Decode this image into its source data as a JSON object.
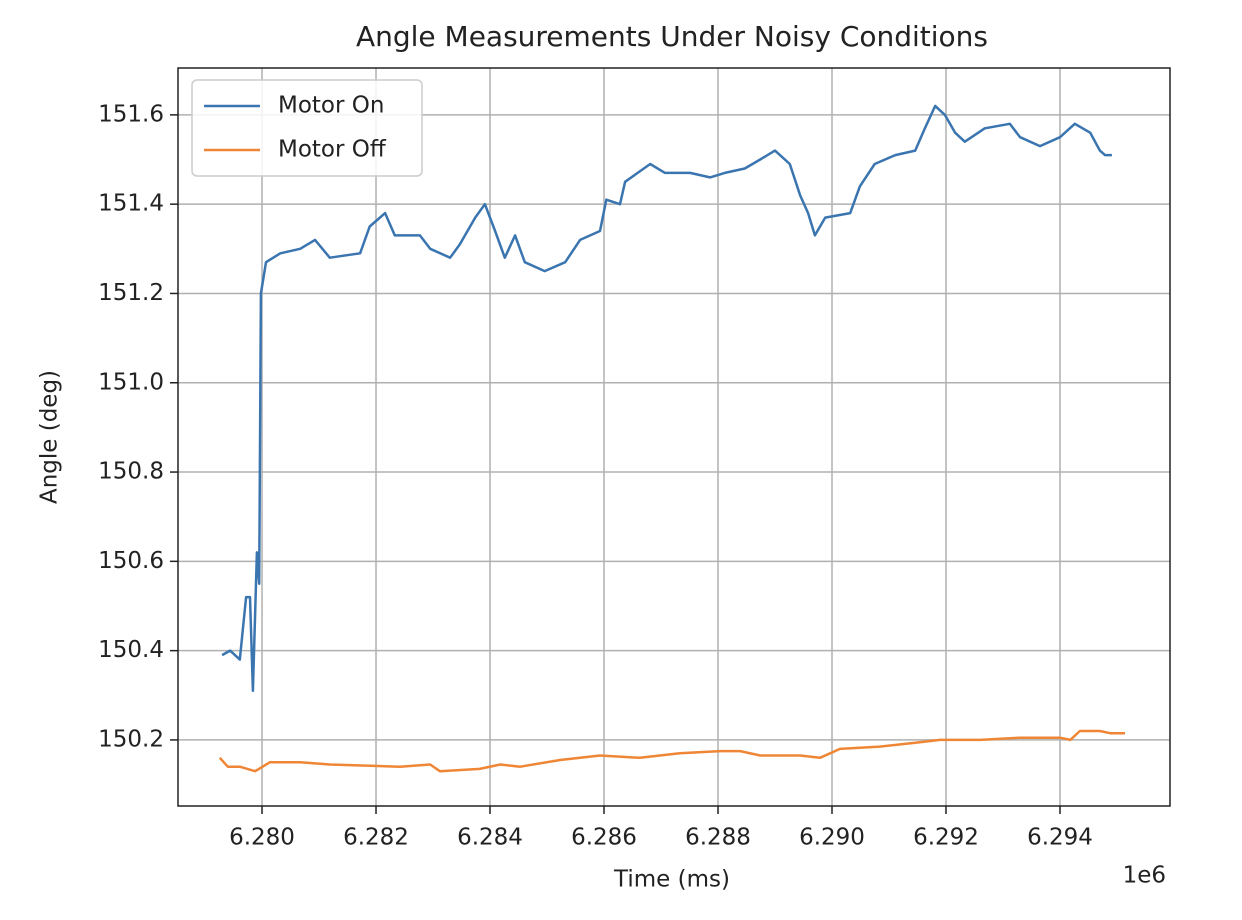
{
  "chart_data": {
    "type": "line",
    "title": "Angle Measurements Under Noisy Conditions",
    "xlabel": "Time (ms)",
    "ylabel": "Angle (deg)",
    "x_offset_label": "1e6",
    "xlim": [
      6.278526,
      6.29593
    ],
    "ylim": [
      150.052,
      151.705
    ],
    "xticks": [
      {
        "value": 6.28,
        "label": "6.280"
      },
      {
        "value": 6.282,
        "label": "6.282"
      },
      {
        "value": 6.284,
        "label": "6.284"
      },
      {
        "value": 6.286,
        "label": "6.286"
      },
      {
        "value": 6.288,
        "label": "6.288"
      },
      {
        "value": 6.29,
        "label": "6.290"
      },
      {
        "value": 6.292,
        "label": "6.292"
      },
      {
        "value": 6.294,
        "label": "6.294"
      }
    ],
    "yticks": [
      150.2,
      150.4,
      150.6,
      150.8,
      {
        "value": 151,
        "label": "151.0"
      },
      151.2,
      151.4,
      151.6
    ],
    "grid": true,
    "legend": "upper left",
    "series": [
      {
        "name": "Motor On",
        "color": "#3a75b0",
        "x": [
          6.2793,
          6.27944,
          6.27961,
          6.27972,
          6.27979,
          6.27984,
          6.27991,
          6.27995,
          6.27998,
          6.28007,
          6.28032,
          6.28067,
          6.28093,
          6.28119,
          6.28172,
          6.28189,
          6.28216,
          6.28233,
          6.28277,
          6.28295,
          6.2833,
          6.28347,
          6.28374,
          6.28391,
          6.28409,
          6.28426,
          6.28444,
          6.28461,
          6.28496,
          6.28532,
          6.28558,
          6.28593,
          6.28604,
          6.28628,
          6.28637,
          6.28681,
          6.28707,
          6.28751,
          6.28786,
          6.28812,
          6.28847,
          6.28874,
          6.289,
          6.28926,
          6.28944,
          6.28958,
          6.2897,
          6.28988,
          6.29032,
          6.29049,
          6.29075,
          6.29111,
          6.29146,
          6.29163,
          6.29181,
          6.29198,
          6.29216,
          6.29233,
          6.29268,
          6.29312,
          6.2933,
          6.29365,
          6.294,
          6.29426,
          6.29453,
          6.2947,
          6.29479,
          6.29491
        ],
        "values": [
          150.39,
          150.4,
          150.38,
          150.52,
          150.52,
          150.31,
          150.62,
          150.55,
          151.2,
          151.27,
          151.29,
          151.3,
          151.32,
          151.28,
          151.29,
          151.35,
          151.38,
          151.33,
          151.33,
          151.3,
          151.28,
          151.31,
          151.37,
          151.4,
          151.34,
          151.28,
          151.33,
          151.27,
          151.25,
          151.27,
          151.32,
          151.34,
          151.41,
          151.4,
          151.45,
          151.49,
          151.47,
          151.47,
          151.46,
          151.47,
          151.48,
          151.5,
          151.52,
          151.49,
          151.42,
          151.38,
          151.33,
          151.37,
          151.38,
          151.44,
          151.49,
          151.51,
          151.52,
          151.57,
          151.62,
          151.6,
          151.56,
          151.54,
          151.57,
          151.58,
          151.55,
          151.53,
          151.55,
          151.58,
          151.56,
          151.52,
          151.51,
          151.51
        ]
      },
      {
        "name": "Motor Off",
        "color": "#ef8636",
        "x": [
          6.27926,
          6.2794,
          6.27961,
          6.27988,
          6.28014,
          6.28067,
          6.28119,
          6.28242,
          6.28295,
          6.28312,
          6.28382,
          6.28418,
          6.28453,
          6.28523,
          6.28593,
          6.28663,
          6.28733,
          6.28804,
          6.28839,
          6.28874,
          6.28944,
          6.28979,
          6.29014,
          6.29084,
          6.29154,
          6.29189,
          6.2926,
          6.2933,
          6.294,
          6.29418,
          6.29435,
          6.2947,
          6.29488,
          6.29514
        ],
        "values": [
          150.16,
          150.14,
          150.14,
          150.13,
          150.15,
          150.15,
          150.145,
          150.14,
          150.145,
          150.13,
          150.135,
          150.145,
          150.14,
          150.155,
          150.165,
          150.16,
          150.17,
          150.175,
          150.175,
          150.165,
          150.165,
          150.16,
          150.18,
          150.185,
          150.195,
          150.2,
          150.2,
          150.205,
          150.205,
          150.2,
          150.22,
          150.22,
          150.215,
          150.215
        ]
      }
    ]
  }
}
